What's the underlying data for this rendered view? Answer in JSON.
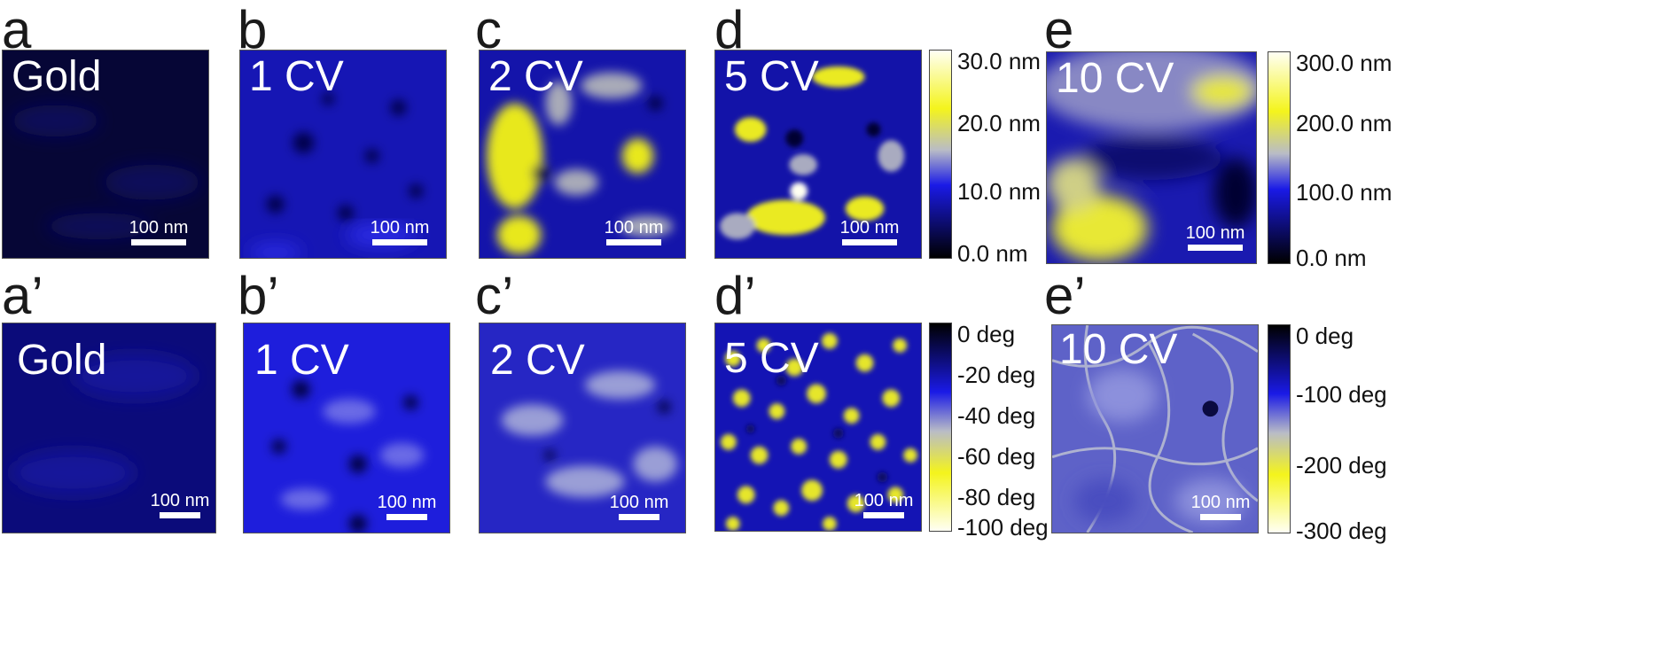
{
  "figure": {
    "top_row": [
      {
        "label": "a",
        "caption": "Gold",
        "scale": "100 nm"
      },
      {
        "label": "b",
        "caption": "1 CV",
        "scale": "100 nm"
      },
      {
        "label": "c",
        "caption": "2 CV",
        "scale": "100 nm"
      },
      {
        "label": "d",
        "caption": "5 CV",
        "scale": "100 nm"
      },
      {
        "label": "e",
        "caption": "10 CV",
        "scale": "100 nm"
      }
    ],
    "bottom_row": [
      {
        "label": "a’",
        "caption": "Gold",
        "scale": "100 nm"
      },
      {
        "label": "b’",
        "caption": "1 CV",
        "scale": "100 nm"
      },
      {
        "label": "c’",
        "caption": "2 CV",
        "scale": "100 nm"
      },
      {
        "label": "d’",
        "caption": "5 CV",
        "scale": "100 nm"
      },
      {
        "label": "e’",
        "caption": "10 CV",
        "scale": "100 nm"
      }
    ],
    "colorbars": {
      "height_d": [
        "30.0 nm",
        "20.0 nm",
        "10.0 nm",
        "0.0 nm"
      ],
      "height_e": [
        "300.0 nm",
        "200.0 nm",
        "100.0 nm",
        "0.0 nm"
      ],
      "phase_d": [
        "0 deg",
        "-20 deg",
        "-40 deg",
        "-60 deg",
        "-80 deg",
        "-100 deg"
      ],
      "phase_e": [
        "0 deg",
        "-100 deg",
        "-200 deg",
        "-300 deg"
      ]
    }
  },
  "colors": {
    "dark": "#000018",
    "blue": "#1212d8",
    "pale": "#b8bcc0",
    "yellow": "#f2f21a",
    "white": "#fffff0"
  }
}
